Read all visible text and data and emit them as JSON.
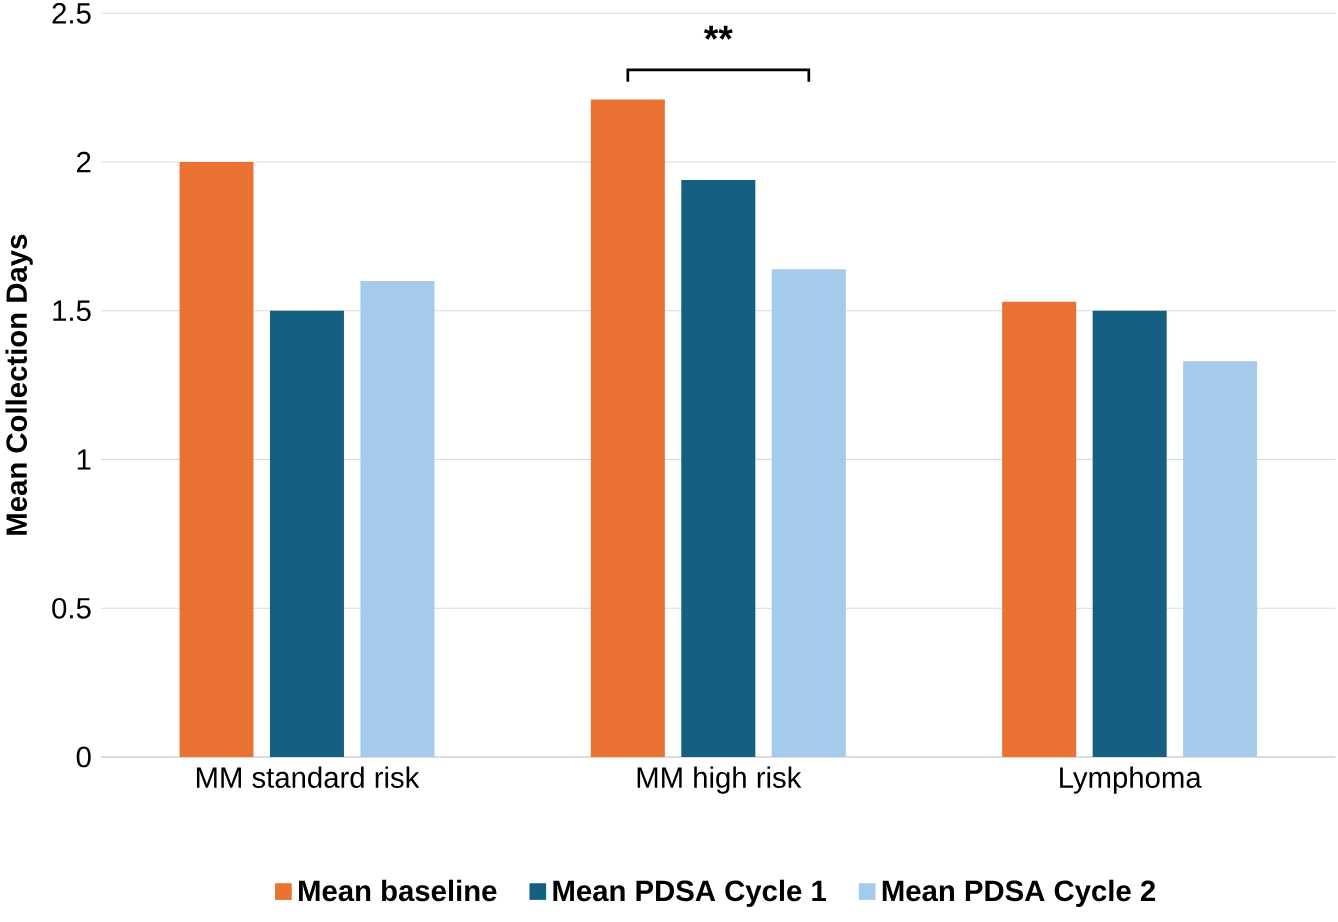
{
  "chart_data": {
    "type": "bar",
    "ylabel": "Mean Collection Days",
    "categories": [
      "MM standard risk",
      "MM high risk",
      "Lymphoma"
    ],
    "series": [
      {
        "name": "Mean baseline",
        "color": "#e97132",
        "values": [
          2.0,
          2.21,
          1.53
        ]
      },
      {
        "name": "Mean PDSA Cycle 1",
        "color": "#156082",
        "values": [
          1.5,
          1.94,
          1.5
        ]
      },
      {
        "name": "Mean PDSA Cycle 2",
        "color": "#a6caec",
        "values": [
          1.6,
          1.64,
          1.33
        ]
      }
    ],
    "ylim": [
      0,
      2.5
    ],
    "yticks": [
      0,
      0.5,
      1,
      1.5,
      2,
      2.5
    ],
    "grid": "y",
    "legend": "bottom",
    "annotations": [
      "**"
    ]
  }
}
